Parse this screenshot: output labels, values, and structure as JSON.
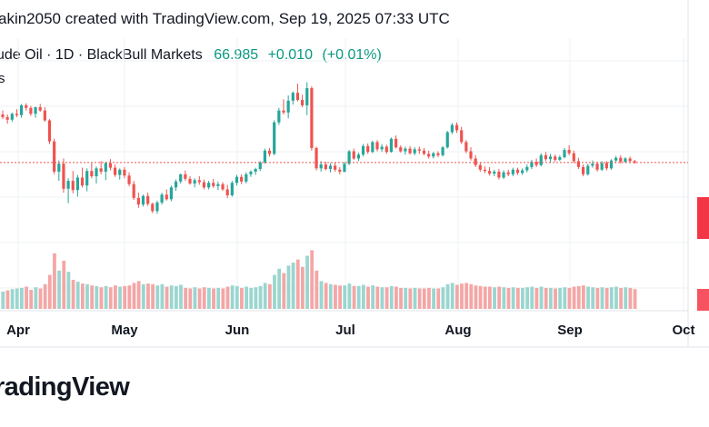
{
  "caption": "akin2050 created with TradingView.com, Sep 19, 2025 07:33 UTC",
  "legend": {
    "symbol": "ude Oil · 1D · BlackBull Markets",
    "price": "66.985",
    "change": "+0.010",
    "change_pct": "(+0.01%)"
  },
  "volume_label": "s",
  "brand": "radingView",
  "colors": {
    "up": "#26a69a",
    "down": "#ef5350",
    "up_volume": "#9ad6cf",
    "down_volume": "#f4a6a6",
    "price_line": "#ef5350"
  },
  "chart_data": {
    "type": "candlestick",
    "x_ticks": [
      "Apr",
      "May",
      "Jun",
      "Jul",
      "Aug",
      "Sep",
      "Oct"
    ],
    "ylim": [
      55.5,
      79
    ],
    "last_price": 66.985,
    "grid": true,
    "candles": [
      [
        74.3,
        74.9,
        73.6,
        73.9
      ],
      [
        73.9,
        74.3,
        72.9,
        73.5
      ],
      [
        73.5,
        74.6,
        73.2,
        74.4
      ],
      [
        74.4,
        75.1,
        73.9,
        74.2
      ],
      [
        74.2,
        75.9,
        73.8,
        75.7
      ],
      [
        75.7,
        76.0,
        74.9,
        75.3
      ],
      [
        75.3,
        75.6,
        74.1,
        74.4
      ],
      [
        74.4,
        75.5,
        73.8,
        75.4
      ],
      [
        75.4,
        75.9,
        74.7,
        74.9
      ],
      [
        74.9,
        75.4,
        73.2,
        73.4
      ],
      [
        73.4,
        73.6,
        69.8,
        70.2
      ],
      [
        70.2,
        70.6,
        65.2,
        65.6
      ],
      [
        65.6,
        67.3,
        64.2,
        66.8
      ],
      [
        66.8,
        67.6,
        62.4,
        63.0
      ],
      [
        63.0,
        64.6,
        60.8,
        64.2
      ],
      [
        64.2,
        65.7,
        62.3,
        62.8
      ],
      [
        62.8,
        65.1,
        61.8,
        64.7
      ],
      [
        64.7,
        66.2,
        63.2,
        63.5
      ],
      [
        63.5,
        66.1,
        62.6,
        65.7
      ],
      [
        65.7,
        66.9,
        64.6,
        64.9
      ],
      [
        64.9,
        66.4,
        63.8,
        66.1
      ],
      [
        66.1,
        67.2,
        65.2,
        65.6
      ],
      [
        65.6,
        67.1,
        64.3,
        66.9
      ],
      [
        66.9,
        67.5,
        65.8,
        66.2
      ],
      [
        66.2,
        66.7,
        64.8,
        65.1
      ],
      [
        65.1,
        66.1,
        64.4,
        65.9
      ],
      [
        65.9,
        66.3,
        64.6,
        65.0
      ],
      [
        65.0,
        65.5,
        63.4,
        63.7
      ],
      [
        63.7,
        64.2,
        61.3,
        61.6
      ],
      [
        61.6,
        62.4,
        60.1,
        60.6
      ],
      [
        60.6,
        62.1,
        60.3,
        61.9
      ],
      [
        61.9,
        62.4,
        60.4,
        60.7
      ],
      [
        60.7,
        60.9,
        59.3,
        59.6
      ],
      [
        59.6,
        61.2,
        59.2,
        60.9
      ],
      [
        60.9,
        62.4,
        60.6,
        62.1
      ],
      [
        62.1,
        62.9,
        61.2,
        61.4
      ],
      [
        61.4,
        63.5,
        61.1,
        63.2
      ],
      [
        63.2,
        64.4,
        62.7,
        64.1
      ],
      [
        64.1,
        65.3,
        63.8,
        65.2
      ],
      [
        65.2,
        65.8,
        64.2,
        64.5
      ],
      [
        64.5,
        64.9,
        63.6,
        63.8
      ],
      [
        63.8,
        64.6,
        63.2,
        64.3
      ],
      [
        64.3,
        64.9,
        63.6,
        64.0
      ],
      [
        64.0,
        64.4,
        62.9,
        63.2
      ],
      [
        63.2,
        64.2,
        62.9,
        63.9
      ],
      [
        63.9,
        64.5,
        63.1,
        63.4
      ],
      [
        63.4,
        64.1,
        62.8,
        63.7
      ],
      [
        63.7,
        64.0,
        62.7,
        62.9
      ],
      [
        62.9,
        63.6,
        61.6,
        62.0
      ],
      [
        62.0,
        64.2,
        61.8,
        63.9
      ],
      [
        63.9,
        65.1,
        63.5,
        64.8
      ],
      [
        64.8,
        65.2,
        63.7,
        64.1
      ],
      [
        64.1,
        65.5,
        63.8,
        65.2
      ],
      [
        65.2,
        65.8,
        64.8,
        65.6
      ],
      [
        65.6,
        66.2,
        65.1,
        66.0
      ],
      [
        66.0,
        67.2,
        65.7,
        67.0
      ],
      [
        67.0,
        69.1,
        66.8,
        68.8
      ],
      [
        68.8,
        69.2,
        67.9,
        68.3
      ],
      [
        68.3,
        73.4,
        68.1,
        73.1
      ],
      [
        73.1,
        75.3,
        72.7,
        74.9
      ],
      [
        74.9,
        76.6,
        74.3,
        74.6
      ],
      [
        74.6,
        77.2,
        73.7,
        76.4
      ],
      [
        76.4,
        77.8,
        75.8,
        77.6
      ],
      [
        77.6,
        79.0,
        76.3,
        76.5
      ],
      [
        76.5,
        77.3,
        75.4,
        75.7
      ],
      [
        75.7,
        79.2,
        74.2,
        78.3
      ],
      [
        78.3,
        78.6,
        68.8,
        69.2
      ],
      [
        69.2,
        69.4,
        65.8,
        66.1
      ],
      [
        66.1,
        67.2,
        65.6,
        66.7
      ],
      [
        66.7,
        67.1,
        65.8,
        66.0
      ],
      [
        66.0,
        66.9,
        65.5,
        66.5
      ],
      [
        66.5,
        67.0,
        65.6,
        65.9
      ],
      [
        65.9,
        66.3,
        65.2,
        65.6
      ],
      [
        65.6,
        67.1,
        65.5,
        66.8
      ],
      [
        66.8,
        68.9,
        66.6,
        68.7
      ],
      [
        68.7,
        69.1,
        67.4,
        67.6
      ],
      [
        67.6,
        68.5,
        67.2,
        68.2
      ],
      [
        68.2,
        69.8,
        67.9,
        69.5
      ],
      [
        69.5,
        69.9,
        68.3,
        68.6
      ],
      [
        68.6,
        70.3,
        68.4,
        70.1
      ],
      [
        70.1,
        70.4,
        68.7,
        69.0
      ],
      [
        69.0,
        69.8,
        68.6,
        69.4
      ],
      [
        69.4,
        69.7,
        68.3,
        68.6
      ],
      [
        68.6,
        70.8,
        68.5,
        70.6
      ],
      [
        70.6,
        71.1,
        69.1,
        69.3
      ],
      [
        69.3,
        69.6,
        68.5,
        68.7
      ],
      [
        68.7,
        69.4,
        68.2,
        69.1
      ],
      [
        69.1,
        69.5,
        68.2,
        68.4
      ],
      [
        68.4,
        69.3,
        68.1,
        69.0
      ],
      [
        69.0,
        69.4,
        68.3,
        68.8
      ],
      [
        68.8,
        69.2,
        68.1,
        68.3
      ],
      [
        68.3,
        68.8,
        67.6,
        67.9
      ],
      [
        67.9,
        68.6,
        67.6,
        68.4
      ],
      [
        68.4,
        68.7,
        67.8,
        68.1
      ],
      [
        68.1,
        69.5,
        67.9,
        69.3
      ],
      [
        69.3,
        71.8,
        69.1,
        71.6
      ],
      [
        71.6,
        73.0,
        71.3,
        72.7
      ],
      [
        72.7,
        73.1,
        71.5,
        71.9
      ],
      [
        71.9,
        72.4,
        69.8,
        70.1
      ],
      [
        70.1,
        70.4,
        68.4,
        68.7
      ],
      [
        68.7,
        69.3,
        67.3,
        67.6
      ],
      [
        67.6,
        68.1,
        66.3,
        66.6
      ],
      [
        66.6,
        67.0,
        65.6,
        65.9
      ],
      [
        65.9,
        66.4,
        65.4,
        65.7
      ],
      [
        65.7,
        66.3,
        65.0,
        65.3
      ],
      [
        65.3,
        65.9,
        64.9,
        65.6
      ],
      [
        65.6,
        66.0,
        64.4,
        64.7
      ],
      [
        64.7,
        65.8,
        64.5,
        65.5
      ],
      [
        65.5,
        65.9,
        64.9,
        65.2
      ],
      [
        65.2,
        66.2,
        64.9,
        65.9
      ],
      [
        65.9,
        66.2,
        65.1,
        65.4
      ],
      [
        65.4,
        66.1,
        65.1,
        65.8
      ],
      [
        65.8,
        66.7,
        65.5,
        66.3
      ],
      [
        66.3,
        67.4,
        66.0,
        67.1
      ],
      [
        67.1,
        67.6,
        66.3,
        66.6
      ],
      [
        66.6,
        68.4,
        66.4,
        68.1
      ],
      [
        68.1,
        68.6,
        67.2,
        67.5
      ],
      [
        67.5,
        68.3,
        66.9,
        67.9
      ],
      [
        67.9,
        68.2,
        67.1,
        67.4
      ],
      [
        67.4,
        68.1,
        67.2,
        67.8
      ],
      [
        67.8,
        69.2,
        67.6,
        68.9
      ],
      [
        68.9,
        69.6,
        68.1,
        68.4
      ],
      [
        68.4,
        68.8,
        66.9,
        67.2
      ],
      [
        67.2,
        67.7,
        66.0,
        66.3
      ],
      [
        66.3,
        66.7,
        64.9,
        65.2
      ],
      [
        65.2,
        66.8,
        65.0,
        66.5
      ],
      [
        66.5,
        67.3,
        66.2,
        66.8
      ],
      [
        66.8,
        67.1,
        65.6,
        65.9
      ],
      [
        65.9,
        67.2,
        65.7,
        66.9
      ],
      [
        66.9,
        67.2,
        65.8,
        66.1
      ],
      [
        66.1,
        67.5,
        65.9,
        67.3
      ],
      [
        67.3,
        68.0,
        66.9,
        67.7
      ],
      [
        67.7,
        68.1,
        66.8,
        67.1
      ],
      [
        67.1,
        67.8,
        66.9,
        67.6
      ],
      [
        67.6,
        67.9,
        66.9,
        67.2
      ],
      [
        67.2,
        67.4,
        66.8,
        66.99
      ]
    ],
    "volume": [
      [
        0.28,
        "up"
      ],
      [
        0.3,
        "down"
      ],
      [
        0.32,
        "up"
      ],
      [
        0.33,
        "up"
      ],
      [
        0.34,
        "up"
      ],
      [
        0.36,
        "down"
      ],
      [
        0.31,
        "down"
      ],
      [
        0.35,
        "up"
      ],
      [
        0.33,
        "down"
      ],
      [
        0.4,
        "down"
      ],
      [
        0.55,
        "down"
      ],
      [
        0.9,
        "down"
      ],
      [
        0.62,
        "up"
      ],
      [
        0.78,
        "down"
      ],
      [
        0.6,
        "up"
      ],
      [
        0.47,
        "down"
      ],
      [
        0.44,
        "up"
      ],
      [
        0.41,
        "down"
      ],
      [
        0.4,
        "up"
      ],
      [
        0.38,
        "down"
      ],
      [
        0.37,
        "up"
      ],
      [
        0.35,
        "down"
      ],
      [
        0.37,
        "up"
      ],
      [
        0.35,
        "down"
      ],
      [
        0.38,
        "down"
      ],
      [
        0.36,
        "up"
      ],
      [
        0.37,
        "down"
      ],
      [
        0.38,
        "down"
      ],
      [
        0.42,
        "down"
      ],
      [
        0.45,
        "down"
      ],
      [
        0.4,
        "up"
      ],
      [
        0.41,
        "down"
      ],
      [
        0.4,
        "down"
      ],
      [
        0.38,
        "up"
      ],
      [
        0.4,
        "up"
      ],
      [
        0.36,
        "down"
      ],
      [
        0.38,
        "up"
      ],
      [
        0.37,
        "up"
      ],
      [
        0.39,
        "up"
      ],
      [
        0.34,
        "down"
      ],
      [
        0.33,
        "down"
      ],
      [
        0.35,
        "up"
      ],
      [
        0.33,
        "down"
      ],
      [
        0.35,
        "down"
      ],
      [
        0.34,
        "up"
      ],
      [
        0.33,
        "down"
      ],
      [
        0.34,
        "up"
      ],
      [
        0.33,
        "down"
      ],
      [
        0.36,
        "down"
      ],
      [
        0.38,
        "up"
      ],
      [
        0.37,
        "up"
      ],
      [
        0.34,
        "down"
      ],
      [
        0.36,
        "up"
      ],
      [
        0.34,
        "up"
      ],
      [
        0.35,
        "up"
      ],
      [
        0.37,
        "up"
      ],
      [
        0.42,
        "up"
      ],
      [
        0.4,
        "down"
      ],
      [
        0.55,
        "up"
      ],
      [
        0.65,
        "up"
      ],
      [
        0.58,
        "down"
      ],
      [
        0.7,
        "up"
      ],
      [
        0.75,
        "up"
      ],
      [
        0.8,
        "down"
      ],
      [
        0.68,
        "down"
      ],
      [
        0.86,
        "up"
      ],
      [
        0.95,
        "down"
      ],
      [
        0.62,
        "down"
      ],
      [
        0.45,
        "up"
      ],
      [
        0.42,
        "down"
      ],
      [
        0.4,
        "up"
      ],
      [
        0.39,
        "down"
      ],
      [
        0.38,
        "down"
      ],
      [
        0.38,
        "up"
      ],
      [
        0.41,
        "up"
      ],
      [
        0.37,
        "down"
      ],
      [
        0.37,
        "up"
      ],
      [
        0.39,
        "up"
      ],
      [
        0.36,
        "down"
      ],
      [
        0.38,
        "up"
      ],
      [
        0.36,
        "down"
      ],
      [
        0.35,
        "up"
      ],
      [
        0.35,
        "down"
      ],
      [
        0.37,
        "up"
      ],
      [
        0.36,
        "down"
      ],
      [
        0.34,
        "down"
      ],
      [
        0.34,
        "up"
      ],
      [
        0.33,
        "down"
      ],
      [
        0.34,
        "up"
      ],
      [
        0.33,
        "down"
      ],
      [
        0.33,
        "down"
      ],
      [
        0.34,
        "down"
      ],
      [
        0.33,
        "up"
      ],
      [
        0.33,
        "down"
      ],
      [
        0.35,
        "up"
      ],
      [
        0.4,
        "up"
      ],
      [
        0.42,
        "up"
      ],
      [
        0.39,
        "down"
      ],
      [
        0.41,
        "down"
      ],
      [
        0.42,
        "down"
      ],
      [
        0.4,
        "down"
      ],
      [
        0.38,
        "down"
      ],
      [
        0.37,
        "down"
      ],
      [
        0.36,
        "down"
      ],
      [
        0.36,
        "down"
      ],
      [
        0.35,
        "up"
      ],
      [
        0.36,
        "down"
      ],
      [
        0.35,
        "up"
      ],
      [
        0.34,
        "down"
      ],
      [
        0.35,
        "up"
      ],
      [
        0.34,
        "down"
      ],
      [
        0.34,
        "up"
      ],
      [
        0.35,
        "up"
      ],
      [
        0.36,
        "up"
      ],
      [
        0.34,
        "down"
      ],
      [
        0.36,
        "up"
      ],
      [
        0.34,
        "down"
      ],
      [
        0.34,
        "up"
      ],
      [
        0.33,
        "down"
      ],
      [
        0.34,
        "up"
      ],
      [
        0.35,
        "up"
      ],
      [
        0.34,
        "down"
      ],
      [
        0.36,
        "down"
      ],
      [
        0.37,
        "down"
      ],
      [
        0.38,
        "down"
      ],
      [
        0.36,
        "up"
      ],
      [
        0.35,
        "up"
      ],
      [
        0.34,
        "down"
      ],
      [
        0.35,
        "up"
      ],
      [
        0.34,
        "down"
      ],
      [
        0.35,
        "up"
      ],
      [
        0.36,
        "up"
      ],
      [
        0.34,
        "down"
      ],
      [
        0.35,
        "up"
      ],
      [
        0.34,
        "down"
      ],
      [
        0.32,
        "down"
      ]
    ]
  }
}
